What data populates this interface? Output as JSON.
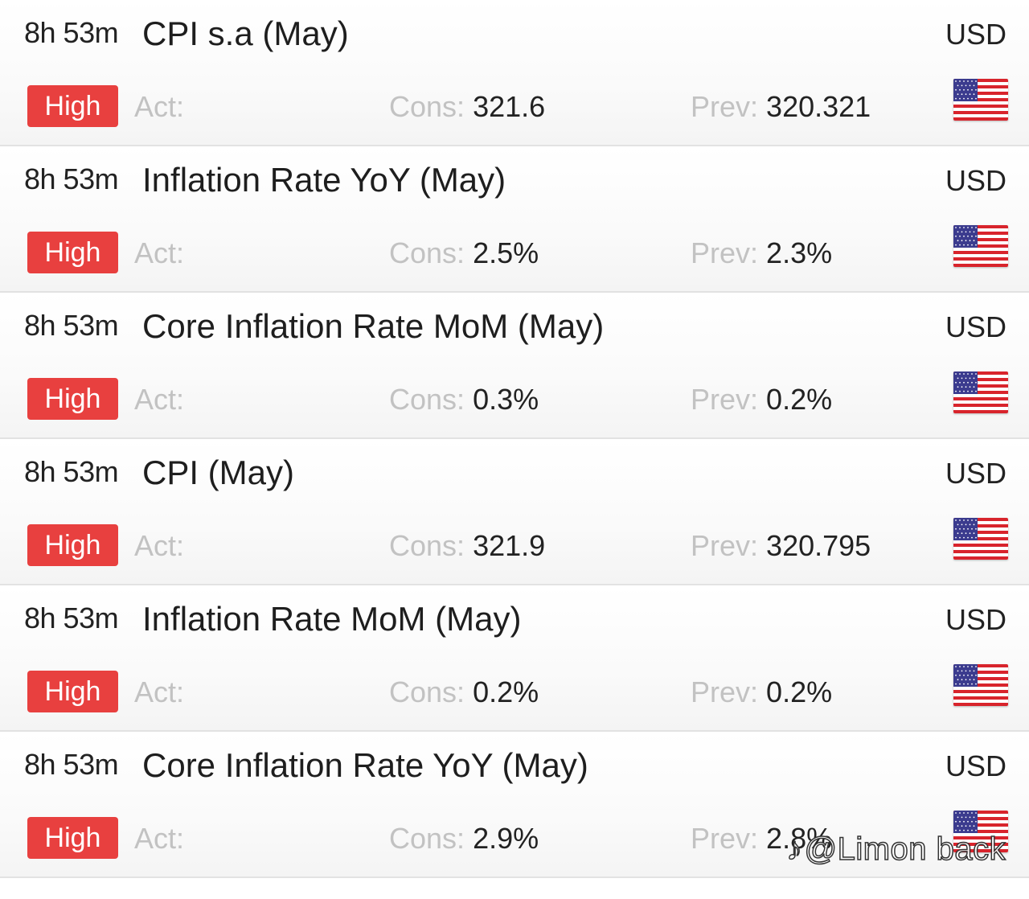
{
  "events": [
    {
      "time": "8h 53m",
      "title": "CPI s.a (May)",
      "currency": "USD",
      "impact": "High",
      "act_label": "Act:",
      "act_value": "",
      "cons_label": "Cons:",
      "cons_value": "321.6",
      "prev_label": "Prev:",
      "prev_value": "320.321",
      "flag": "us-flag-icon"
    },
    {
      "time": "8h 53m",
      "title": "Inflation Rate YoY (May)",
      "currency": "USD",
      "impact": "High",
      "act_label": "Act:",
      "act_value": "",
      "cons_label": "Cons:",
      "cons_value": "2.5%",
      "prev_label": "Prev:",
      "prev_value": "2.3%",
      "flag": "us-flag-icon"
    },
    {
      "time": "8h 53m",
      "title": "Core Inflation Rate MoM (May)",
      "currency": "USD",
      "impact": "High",
      "act_label": "Act:",
      "act_value": "",
      "cons_label": "Cons:",
      "cons_value": "0.3%",
      "prev_label": "Prev:",
      "prev_value": "0.2%",
      "flag": "us-flag-icon"
    },
    {
      "time": "8h 53m",
      "title": "CPI (May)",
      "currency": "USD",
      "impact": "High",
      "act_label": "Act:",
      "act_value": "",
      "cons_label": "Cons:",
      "cons_value": "321.9",
      "prev_label": "Prev:",
      "prev_value": "320.795",
      "flag": "us-flag-icon"
    },
    {
      "time": "8h 53m",
      "title": "Inflation Rate MoM (May)",
      "currency": "USD",
      "impact": "High",
      "act_label": "Act:",
      "act_value": "",
      "cons_label": "Cons:",
      "cons_value": "0.2%",
      "prev_label": "Prev:",
      "prev_value": "0.2%",
      "flag": "us-flag-icon"
    },
    {
      "time": "8h 53m",
      "title": "Core Inflation Rate YoY (May)",
      "currency": "USD",
      "impact": "High",
      "act_label": "Act:",
      "act_value": "",
      "cons_label": "Cons:",
      "cons_value": "2.9%",
      "prev_label": "Prev:",
      "prev_value": "2.8%",
      "flag": "us-flag-icon"
    }
  ],
  "watermark": {
    "text": "@Limon back"
  },
  "colors": {
    "impact_high": "#e8403f",
    "label_muted": "#c2c2c2",
    "text": "#222222"
  }
}
